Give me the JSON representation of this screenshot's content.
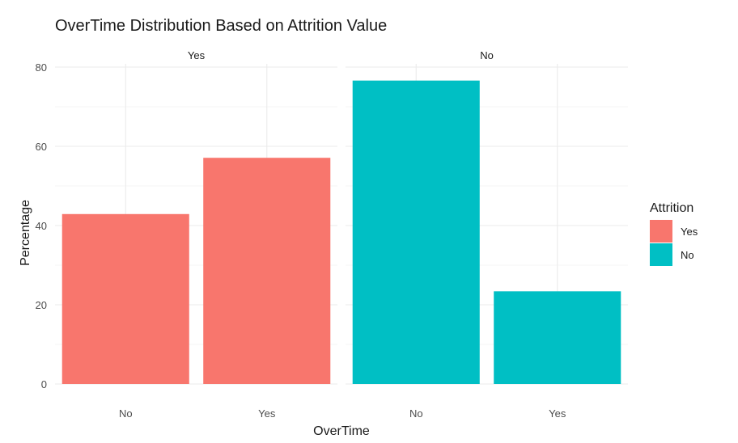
{
  "chart_data": {
    "type": "bar",
    "title": "OverTime Distribution Based on Attrition Value",
    "xlabel": "OverTime",
    "ylabel": "Percentage",
    "ylim": [
      0,
      80
    ],
    "yticks": [
      "0",
      "20",
      "40",
      "60",
      "80"
    ],
    "grid": true,
    "categories": [
      "No",
      "Yes"
    ],
    "facets": [
      {
        "name": "Yes",
        "color": "#F8766D",
        "values": [
          42.9,
          57.1
        ]
      },
      {
        "name": "No",
        "color": "#00BFC4",
        "values": [
          76.6,
          23.4
        ]
      }
    ],
    "legend": {
      "title": "Attrition",
      "position": "right",
      "entries": [
        {
          "label": "Yes",
          "color": "#F8766D"
        },
        {
          "label": "No",
          "color": "#00BFC4"
        }
      ]
    }
  }
}
